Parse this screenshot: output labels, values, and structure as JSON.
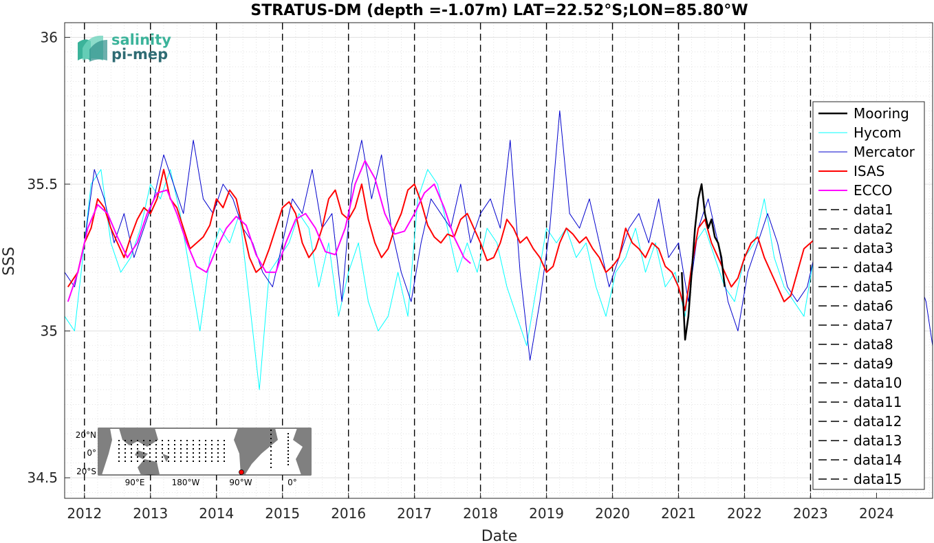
{
  "chart_data": {
    "type": "line",
    "title": "STRATUS-DM (depth =-1.07m) LAT=22.52°S;LON=85.80°W",
    "xlabel": "Date",
    "ylabel": "SSS",
    "xlim": [
      2011.7,
      2024.85
    ],
    "ylim": [
      34.43,
      36.05
    ],
    "x_ticks": [
      2012,
      2013,
      2014,
      2015,
      2016,
      2017,
      2018,
      2019,
      2020,
      2021,
      2022,
      2023,
      2024
    ],
    "y_ticks": [
      34.5,
      35,
      35.5,
      36
    ],
    "y_tick_labels": [
      "34.5",
      "35",
      "35.5",
      "36"
    ],
    "grid": "minor dotted",
    "legend_position": "right",
    "vlines": [
      2012,
      2013,
      2014,
      2015,
      2016,
      2017,
      2018,
      2019,
      2020,
      2021,
      2022,
      2023
    ],
    "series": [
      {
        "name": "Mooring",
        "color": "#000000",
        "width": 2.5,
        "x": [
          2021.05,
          2021.1,
          2021.15,
          2021.2,
          2021.25,
          2021.3,
          2021.35,
          2021.4,
          2021.45,
          2021.5,
          2021.55,
          2021.6,
          2021.65,
          2021.7
        ],
        "y": [
          35.2,
          34.97,
          35.05,
          35.2,
          35.35,
          35.45,
          35.5,
          35.4,
          35.35,
          35.38,
          35.32,
          35.3,
          35.25,
          35.15
        ]
      },
      {
        "name": "Hycom",
        "color": "#00ffff",
        "width": 1,
        "x": [
          2011.7,
          2011.85,
          2012.0,
          2012.1,
          2012.25,
          2012.4,
          2012.55,
          2012.7,
          2012.85,
          2013.0,
          2013.15,
          2013.3,
          2013.45,
          2013.6,
          2013.75,
          2013.9,
          2014.05,
          2014.2,
          2014.35,
          2014.5,
          2014.65,
          2014.8,
          2014.95,
          2015.1,
          2015.25,
          2015.4,
          2015.55,
          2015.7,
          2015.85,
          2016.0,
          2016.15,
          2016.3,
          2016.45,
          2016.6,
          2016.75,
          2016.9,
          2017.05,
          2017.2,
          2017.35,
          2017.5,
          2017.65,
          2017.8,
          2017.95,
          2018.1,
          2018.25,
          2018.4,
          2018.55,
          2018.7,
          2018.85,
          2019.0,
          2019.15,
          2019.3,
          2019.45,
          2019.6,
          2019.75,
          2019.9,
          2020.05,
          2020.2,
          2020.35,
          2020.5,
          2020.65,
          2020.8,
          2020.95,
          2021.1,
          2021.25,
          2021.4,
          2021.55,
          2021.7,
          2021.85,
          2022.0,
          2022.15,
          2022.3,
          2022.45,
          2022.6,
          2022.75,
          2022.9,
          2023.05
        ],
        "y": [
          35.05,
          35.0,
          35.3,
          35.5,
          35.55,
          35.3,
          35.2,
          35.25,
          35.35,
          35.5,
          35.45,
          35.55,
          35.4,
          35.2,
          35.0,
          35.25,
          35.35,
          35.3,
          35.4,
          35.1,
          34.8,
          35.2,
          35.25,
          35.3,
          35.4,
          35.35,
          35.15,
          35.3,
          35.05,
          35.2,
          35.3,
          35.1,
          35.0,
          35.05,
          35.2,
          35.05,
          35.45,
          35.55,
          35.5,
          35.35,
          35.2,
          35.3,
          35.2,
          35.35,
          35.3,
          35.15,
          35.05,
          34.95,
          35.15,
          35.35,
          35.3,
          35.35,
          35.25,
          35.3,
          35.15,
          35.05,
          35.2,
          35.25,
          35.35,
          35.2,
          35.3,
          35.15,
          35.2,
          35.05,
          35.3,
          35.35,
          35.25,
          35.15,
          35.1,
          35.25,
          35.3,
          35.45,
          35.25,
          35.15,
          35.1,
          35.05,
          35.25
        ]
      },
      {
        "name": "Mercator",
        "color": "#0000cd",
        "width": 1,
        "x": [
          2011.7,
          2011.85,
          2012.0,
          2012.15,
          2012.3,
          2012.45,
          2012.6,
          2012.75,
          2012.9,
          2013.05,
          2013.2,
          2013.35,
          2013.5,
          2013.65,
          2013.8,
          2013.95,
          2014.1,
          2014.25,
          2014.4,
          2014.55,
          2014.7,
          2014.85,
          2015.0,
          2015.15,
          2015.3,
          2015.45,
          2015.6,
          2015.75,
          2015.9,
          2016.05,
          2016.2,
          2016.35,
          2016.5,
          2016.65,
          2016.8,
          2016.95,
          2017.1,
          2017.25,
          2017.4,
          2017.55,
          2017.7,
          2017.85,
          2018.0,
          2018.15,
          2018.3,
          2018.45,
          2018.6,
          2018.75,
          2018.9,
          2019.05,
          2019.2,
          2019.35,
          2019.5,
          2019.65,
          2019.8,
          2019.95,
          2020.1,
          2020.25,
          2020.4,
          2020.55,
          2020.7,
          2020.85,
          2021.0,
          2021.15,
          2021.3,
          2021.45,
          2021.6,
          2021.75,
          2021.9,
          2022.05,
          2022.2,
          2022.35,
          2022.5,
          2022.65,
          2022.8,
          2022.95,
          2023.1,
          2023.25,
          2023.4,
          2023.55,
          2023.7,
          2023.85,
          2024.0,
          2024.15,
          2024.3,
          2024.45,
          2024.6,
          2024.75,
          2024.85
        ],
        "y": [
          35.2,
          35.15,
          35.3,
          35.55,
          35.45,
          35.3,
          35.4,
          35.25,
          35.35,
          35.45,
          35.6,
          35.5,
          35.4,
          35.65,
          35.45,
          35.4,
          35.5,
          35.45,
          35.35,
          35.3,
          35.2,
          35.15,
          35.3,
          35.45,
          35.4,
          35.55,
          35.35,
          35.4,
          35.1,
          35.5,
          35.65,
          35.45,
          35.6,
          35.35,
          35.2,
          35.1,
          35.3,
          35.45,
          35.4,
          35.35,
          35.5,
          35.3,
          35.4,
          35.45,
          35.35,
          35.65,
          35.2,
          34.9,
          35.1,
          35.35,
          35.75,
          35.4,
          35.35,
          35.45,
          35.3,
          35.15,
          35.25,
          35.35,
          35.4,
          35.3,
          35.45,
          35.25,
          35.3,
          35.1,
          35.35,
          35.45,
          35.3,
          35.1,
          35.0,
          35.2,
          35.3,
          35.4,
          35.3,
          35.15,
          35.1,
          35.15,
          35.3,
          35.4,
          35.35,
          35.3,
          35.45,
          35.6,
          35.5,
          35.35,
          35.3,
          35.25,
          35.2,
          35.1,
          34.95
        ]
      },
      {
        "name": "ISAS",
        "color": "#ff0000",
        "width": 2,
        "x": [
          2011.75,
          2011.9,
          2012.0,
          2012.1,
          2012.2,
          2012.3,
          2012.4,
          2012.5,
          2012.6,
          2012.7,
          2012.8,
          2012.9,
          2013.0,
          2013.1,
          2013.2,
          2013.3,
          2013.4,
          2013.5,
          2013.6,
          2013.7,
          2013.8,
          2013.9,
          2014.0,
          2014.1,
          2014.2,
          2014.3,
          2014.4,
          2014.5,
          2014.6,
          2014.7,
          2014.8,
          2014.9,
          2015.0,
          2015.1,
          2015.2,
          2015.3,
          2015.4,
          2015.5,
          2015.6,
          2015.7,
          2015.8,
          2015.9,
          2016.0,
          2016.1,
          2016.2,
          2016.3,
          2016.4,
          2016.5,
          2016.6,
          2016.7,
          2016.8,
          2016.9,
          2017.0,
          2017.1,
          2017.2,
          2017.3,
          2017.4,
          2017.5,
          2017.6,
          2017.7,
          2017.8,
          2017.9,
          2018.0,
          2018.1,
          2018.2,
          2018.3,
          2018.4,
          2018.5,
          2018.6,
          2018.7,
          2018.8,
          2018.9,
          2019.0,
          2019.1,
          2019.2,
          2019.3,
          2019.4,
          2019.5,
          2019.6,
          2019.7,
          2019.8,
          2019.9,
          2020.0,
          2020.1,
          2020.2,
          2020.3,
          2020.4,
          2020.5,
          2020.6,
          2020.7,
          2020.8,
          2020.9,
          2021.0,
          2021.1,
          2021.2,
          2021.3,
          2021.4,
          2021.5,
          2021.6,
          2021.7,
          2021.8,
          2021.9,
          2022.0,
          2022.1,
          2022.2,
          2022.3,
          2022.4,
          2022.5,
          2022.6,
          2022.7,
          2022.8,
          2022.9,
          2023.0,
          2023.05
        ],
        "y": [
          35.15,
          35.2,
          35.3,
          35.35,
          35.45,
          35.42,
          35.35,
          35.3,
          35.25,
          35.32,
          35.38,
          35.42,
          35.4,
          35.45,
          35.55,
          35.45,
          35.42,
          35.35,
          35.28,
          35.3,
          35.32,
          35.36,
          35.45,
          35.42,
          35.48,
          35.45,
          35.35,
          35.25,
          35.2,
          35.22,
          35.28,
          35.35,
          35.42,
          35.44,
          35.4,
          35.3,
          35.25,
          35.28,
          35.35,
          35.45,
          35.48,
          35.4,
          35.38,
          35.42,
          35.5,
          35.38,
          35.3,
          35.25,
          35.28,
          35.35,
          35.4,
          35.48,
          35.5,
          35.44,
          35.36,
          35.32,
          35.3,
          35.33,
          35.32,
          35.38,
          35.4,
          35.35,
          35.3,
          35.24,
          35.25,
          35.3,
          35.38,
          35.35,
          35.3,
          35.32,
          35.28,
          35.25,
          35.2,
          35.22,
          35.3,
          35.35,
          35.33,
          35.3,
          35.32,
          35.28,
          35.25,
          35.2,
          35.22,
          35.25,
          35.35,
          35.3,
          35.28,
          35.25,
          35.3,
          35.28,
          35.22,
          35.2,
          35.15,
          35.07,
          35.22,
          35.35,
          35.38,
          35.3,
          35.25,
          35.2,
          35.15,
          35.18,
          35.25,
          35.3,
          35.32,
          35.25,
          35.2,
          35.15,
          35.1,
          35.12,
          35.2,
          35.28,
          35.3,
          35.31
        ]
      },
      {
        "name": "ECCO",
        "color": "#ff00ff",
        "width": 2,
        "x": [
          2011.75,
          2011.9,
          2012.05,
          2012.2,
          2012.35,
          2012.5,
          2012.65,
          2012.8,
          2012.95,
          2013.1,
          2013.25,
          2013.4,
          2013.55,
          2013.7,
          2013.85,
          2014.0,
          2014.15,
          2014.3,
          2014.45,
          2014.6,
          2014.75,
          2014.9,
          2015.05,
          2015.2,
          2015.35,
          2015.5,
          2015.65,
          2015.8,
          2015.95,
          2016.1,
          2016.25,
          2016.4,
          2016.55,
          2016.7,
          2016.85,
          2017.0,
          2017.15,
          2017.3,
          2017.45,
          2017.6,
          2017.75,
          2017.85
        ],
        "y": [
          35.1,
          35.2,
          35.35,
          35.43,
          35.4,
          35.32,
          35.25,
          35.3,
          35.4,
          35.47,
          35.48,
          35.4,
          35.3,
          35.22,
          35.2,
          35.28,
          35.35,
          35.39,
          35.36,
          35.26,
          35.2,
          35.2,
          35.3,
          35.38,
          35.4,
          35.35,
          35.27,
          35.26,
          35.35,
          35.5,
          35.58,
          35.52,
          35.4,
          35.33,
          35.34,
          35.4,
          35.47,
          35.5,
          35.42,
          35.32,
          35.25,
          35.23
        ]
      }
    ],
    "legend_entries": [
      "Mooring",
      "Hycom",
      "Mercator",
      "ISAS",
      "ECCO",
      "data1",
      "data2",
      "data3",
      "data4",
      "data5",
      "data6",
      "data7",
      "data8",
      "data9",
      "data10",
      "data11",
      "data12",
      "data13",
      "data14",
      "data15"
    ]
  },
  "logo": {
    "line1": "salinity",
    "line2": "pi-mep"
  },
  "inset_map": {
    "lat_labels": [
      "20°N",
      "0°",
      "20°S"
    ],
    "lon_labels": [
      "90°E",
      "180°W",
      "90°W",
      "0°"
    ],
    "ocean_color": "#ffffff",
    "land_color": "#808080",
    "marker_color": "#ff0000"
  }
}
